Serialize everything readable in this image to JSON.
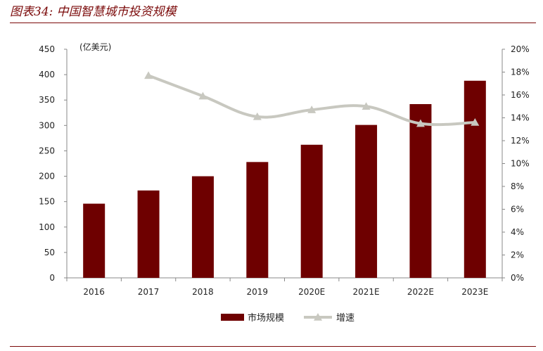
{
  "figure_label": "图表34:",
  "figure_title": "中国智慧城市投资规模",
  "colors": {
    "bar": "#6e0000",
    "line": "#c8c8c0",
    "accent": "#7b0a0a"
  },
  "chart_data": {
    "type": "bar",
    "categories": [
      "2016",
      "2017",
      "2018",
      "2019",
      "2020E",
      "2021E",
      "2022E",
      "2023E"
    ],
    "series": [
      {
        "name": "市场规模",
        "type": "bar",
        "axis": "left",
        "values": [
          146,
          172,
          200,
          228,
          262,
          301,
          342,
          388
        ]
      },
      {
        "name": "增速",
        "type": "line",
        "axis": "right",
        "marker": "triangle",
        "values": [
          null,
          0.177,
          0.159,
          0.141,
          0.147,
          0.15,
          0.135,
          0.136
        ]
      }
    ],
    "unit_label": "(亿美元)",
    "y_left": {
      "min": 0,
      "max": 450,
      "ticks": [
        "0",
        "50",
        "100",
        "150",
        "200",
        "250",
        "300",
        "350",
        "400",
        "450"
      ]
    },
    "y_right": {
      "min": 0,
      "max": 0.2,
      "ticks": [
        "0%",
        "2%",
        "4%",
        "6%",
        "8%",
        "10%",
        "12%",
        "14%",
        "16%",
        "18%",
        "20%"
      ]
    },
    "grid": false,
    "legend_position": "bottom"
  }
}
